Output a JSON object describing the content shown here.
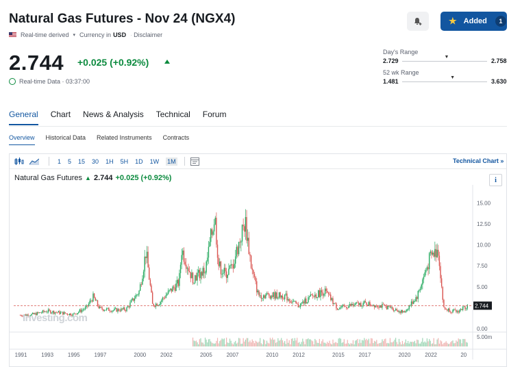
{
  "header": {
    "title": "Natural Gas Futures - Nov 24 (NGX4)",
    "realtime_derived": "Real-time derived",
    "currency_label": "Currency in",
    "currency": "USD",
    "disclaimer": "Disclaimer"
  },
  "watchlist": {
    "added_label": "Added",
    "added_count": "1"
  },
  "quote": {
    "price": "2.744",
    "change": "+0.025 (+0.92%)",
    "realtime_data": "Real-time Data · 03:37:00"
  },
  "ranges": {
    "day": {
      "label": "Day's Range",
      "low": "2.729",
      "high": "2.758",
      "position": 0.52
    },
    "week52": {
      "label": "52 wk Range",
      "low": "1.481",
      "high": "3.630",
      "position": 0.59
    }
  },
  "tabs": [
    "General",
    "Chart",
    "News & Analysis",
    "Technical",
    "Forum"
  ],
  "active_tab": "General",
  "subtabs": [
    "Overview",
    "Historical Data",
    "Related Instruments",
    "Contracts"
  ],
  "active_subtab": "Overview",
  "toolbar": {
    "timeframes": [
      "1",
      "5",
      "15",
      "30",
      "1H",
      "5H",
      "1D",
      "1W",
      "1M"
    ],
    "active_timeframe": "1M",
    "technical_chart": "Technical Chart »"
  },
  "chart_legend": {
    "name": "Natural Gas Futures",
    "price": "2.744",
    "change": "+0.025 (+0.92%)"
  },
  "watermark": "Investing.com",
  "info_label": "i",
  "chart_data": {
    "type": "candlestick",
    "ylim": [
      0,
      16.5
    ],
    "y_ticks": [
      "15.00",
      "12.50",
      "10.00",
      "7.50",
      "5.00",
      "0.00"
    ],
    "volume_tick": "5.00m",
    "current_price_label": "2.744",
    "current_price": 2.744,
    "x_ticks": [
      "1991",
      "1993",
      "1995",
      "1997",
      "2000",
      "2002",
      "2005",
      "2007",
      "2010",
      "2012",
      "2015",
      "2017",
      "2020",
      "2022",
      "20"
    ],
    "series": [
      {
        "x": [
          1991,
          1992,
          1993,
          1994,
          1995,
          1996,
          1996.5,
          1997,
          1998,
          1999,
          2000,
          2000.5,
          2001,
          2001.5,
          2002,
          2003,
          2003.2,
          2004,
          2005,
          2005.7,
          2006,
          2006.5,
          2007,
          2008,
          2008.5,
          2009,
          2010,
          2011,
          2012,
          2013,
          2014,
          2015,
          2016,
          2017,
          2018,
          2019,
          2020,
          2021,
          2022,
          2022.6,
          2023,
          2024,
          2024.8
        ],
        "close": [
          1.6,
          1.7,
          2.1,
          1.9,
          1.7,
          2.5,
          3.8,
          2.4,
          2.2,
          2.3,
          4.5,
          9.2,
          2.8,
          3.1,
          4.0,
          5.5,
          9.5,
          6.0,
          7.0,
          13.5,
          7.5,
          6.5,
          7.3,
          12.8,
          7.0,
          4.0,
          4.0,
          3.9,
          2.7,
          3.8,
          4.5,
          2.4,
          2.8,
          3.0,
          2.8,
          2.5,
          1.9,
          3.9,
          8.5,
          9.5,
          2.4,
          2.0,
          2.744
        ]
      }
    ]
  }
}
